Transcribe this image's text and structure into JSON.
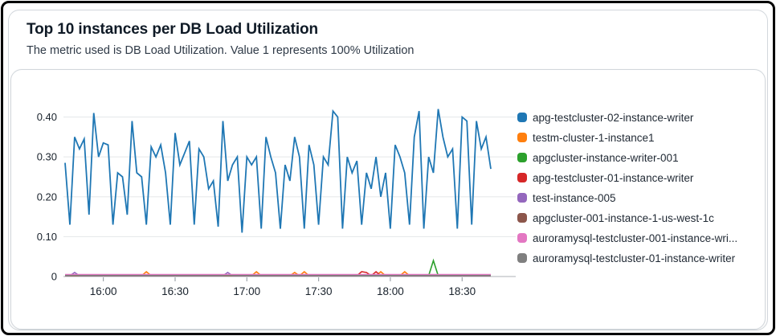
{
  "header": {
    "title": "Top 10 instances per DB Load Utilization",
    "subtitle": "The metric used is DB Load Utilization. Value 1 represents 100% Utilization"
  },
  "chart_data": {
    "type": "line",
    "title": "Top 10 instances per DB Load Utilization",
    "xlabel": "",
    "ylabel": "",
    "x_start": "15:44",
    "x_end": "18:42",
    "interval_minutes": 2,
    "x_ticks": [
      "16:00",
      "16:30",
      "17:00",
      "17:30",
      "18:00",
      "18:30"
    ],
    "y_ticks": [
      {
        "v": 0.0,
        "label": "0"
      },
      {
        "v": 0.1,
        "label": "0.10"
      },
      {
        "v": 0.2,
        "label": "0.20"
      },
      {
        "v": 0.3,
        "label": "0.30"
      },
      {
        "v": 0.4,
        "label": "0.40"
      }
    ],
    "ylim": [
      0,
      0.425
    ],
    "grid": "horizontal",
    "legend_position": "right",
    "colors": {
      "blue": "#1f77b4",
      "orange": "#ff7f0e",
      "green": "#2ca02c",
      "red": "#d62728",
      "purple": "#9467bd",
      "brown": "#8c564b",
      "pink": "#e377c2",
      "gray": "#7f7f7f"
    },
    "series": [
      {
        "name": "apg-testcluster-02-instance-writer",
        "color": "#1f77b4",
        "values": [
          0.285,
          0.13,
          0.35,
          0.32,
          0.345,
          0.155,
          0.41,
          0.3,
          0.335,
          0.33,
          0.13,
          0.26,
          0.25,
          0.155,
          0.39,
          0.26,
          0.25,
          0.13,
          0.325,
          0.3,
          0.33,
          0.26,
          0.13,
          0.36,
          0.28,
          0.31,
          0.34,
          0.13,
          0.32,
          0.3,
          0.22,
          0.24,
          0.125,
          0.39,
          0.24,
          0.28,
          0.3,
          0.11,
          0.3,
          0.28,
          0.3,
          0.12,
          0.35,
          0.3,
          0.26,
          0.12,
          0.28,
          0.24,
          0.35,
          0.3,
          0.12,
          0.33,
          0.28,
          0.13,
          0.3,
          0.28,
          0.415,
          0.4,
          0.12,
          0.3,
          0.26,
          0.29,
          0.13,
          0.26,
          0.22,
          0.3,
          0.2,
          0.26,
          0.12,
          0.33,
          0.3,
          0.26,
          0.13,
          0.35,
          0.415,
          0.12,
          0.3,
          0.26,
          0.42,
          0.35,
          0.3,
          0.32,
          0.12,
          0.4,
          0.39,
          0.13,
          0.39,
          0.32,
          0.35,
          0.27
        ]
      },
      {
        "name": "testm-cluster-1-instance1",
        "color": "#ff7f0e",
        "baseline": 0.002,
        "spikes": [
          {
            "t": "16:18",
            "v": 0.012
          },
          {
            "t": "17:04",
            "v": 0.012
          },
          {
            "t": "17:20",
            "v": 0.01
          },
          {
            "t": "17:24",
            "v": 0.012
          },
          {
            "t": "17:56",
            "v": 0.012
          },
          {
            "t": "18:06",
            "v": 0.012
          }
        ]
      },
      {
        "name": "apgcluster-instance-writer-001",
        "color": "#2ca02c",
        "baseline": 0.002,
        "spikes": [
          {
            "t": "18:18",
            "v": 0.04
          }
        ]
      },
      {
        "name": "apg-testcluster-01-instance-writer",
        "color": "#d62728",
        "baseline": 0.002,
        "spikes": [
          {
            "t": "17:48",
            "v": 0.012
          },
          {
            "t": "17:50",
            "v": 0.01
          },
          {
            "t": "17:54",
            "v": 0.012
          }
        ]
      },
      {
        "name": "test-instance-005",
        "color": "#9467bd",
        "baseline": 0.002,
        "spikes": [
          {
            "t": "15:48",
            "v": 0.01
          },
          {
            "t": "16:52",
            "v": 0.01
          }
        ]
      },
      {
        "name": "apgcluster-001-instance-1-us-west-1c",
        "color": "#8c564b",
        "baseline": 0.004,
        "spikes": []
      },
      {
        "name": "auroramysql-testcluster-001-instance-wri...",
        "color": "#e377c2",
        "baseline": 0.005,
        "spikes": []
      },
      {
        "name": "auroramysql-testcluster-01-instance-writer",
        "color": "#7f7f7f",
        "baseline": 0.0025,
        "spikes": []
      }
    ]
  }
}
